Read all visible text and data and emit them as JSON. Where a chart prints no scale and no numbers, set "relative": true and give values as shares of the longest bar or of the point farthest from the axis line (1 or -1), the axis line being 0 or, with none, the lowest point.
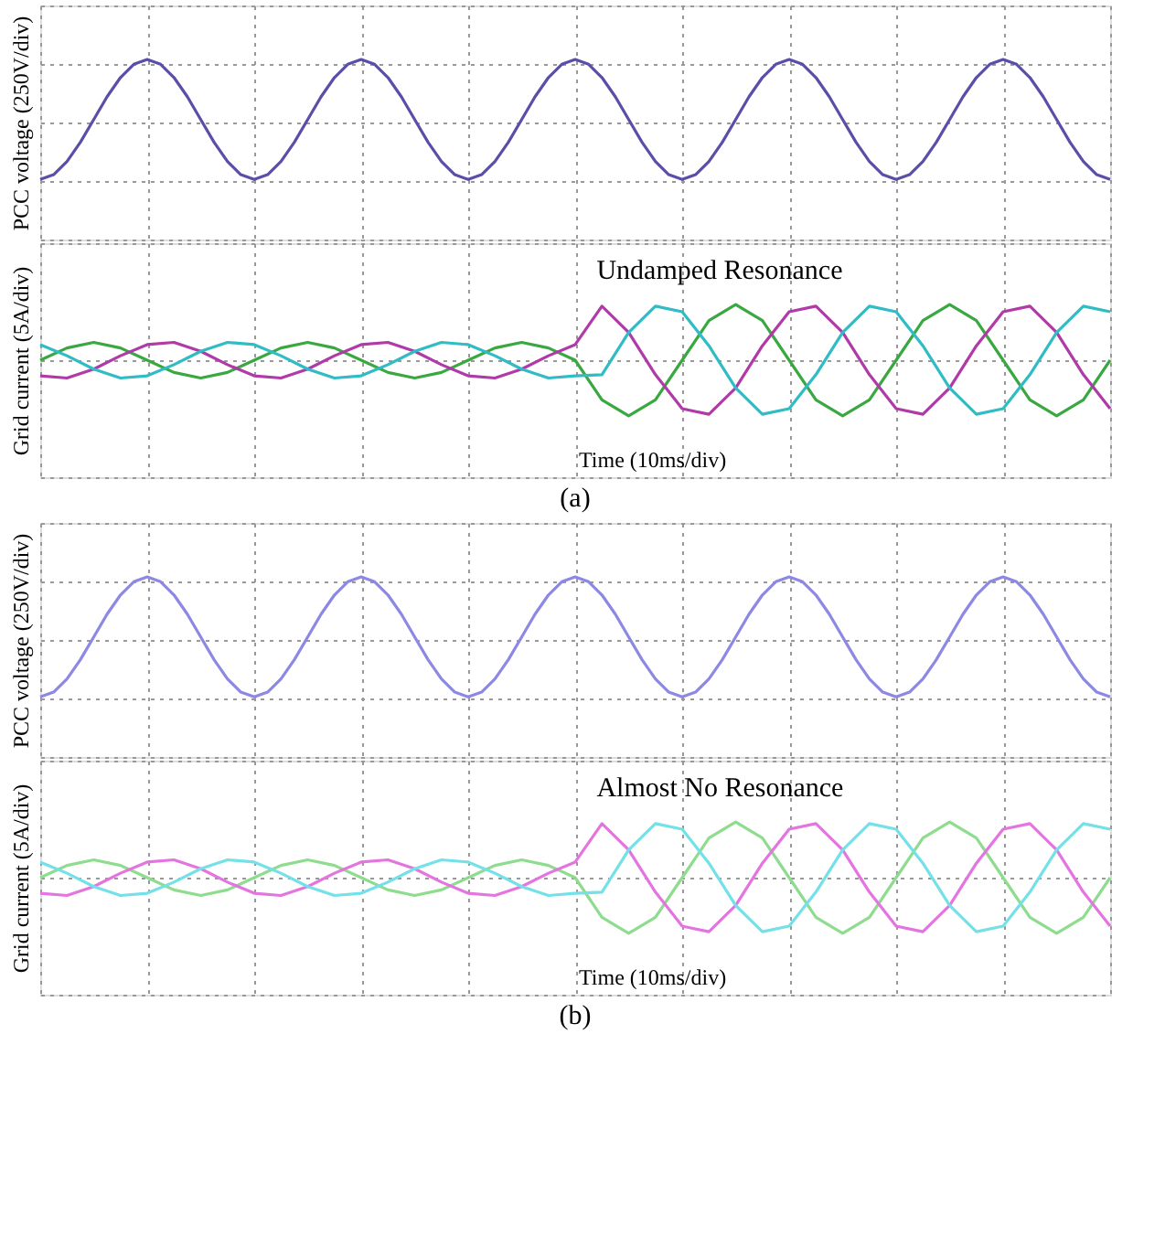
{
  "chart_data": [
    {
      "type": "line",
      "ylabel": "PCC voltage (250V/div)",
      "relative": true,
      "grid": true,
      "tick_labels": false,
      "categories": [
        null,
        null,
        null,
        null,
        null,
        null,
        null,
        null,
        null,
        null,
        null,
        null,
        null,
        null,
        null,
        null,
        null,
        null,
        null,
        null,
        null,
        null,
        null,
        null,
        null,
        null,
        null,
        null,
        null,
        null,
        null,
        null,
        null,
        null,
        null,
        null,
        null,
        null,
        null,
        null,
        null,
        null,
        null,
        null,
        null,
        null,
        null,
        null,
        null,
        null,
        null,
        null,
        null,
        null,
        null,
        null,
        null,
        null,
        null,
        null,
        null,
        null,
        null,
        null,
        null,
        null,
        null,
        null,
        null,
        null,
        null,
        null,
        null,
        null,
        null,
        null,
        null,
        null,
        null,
        null,
        null
      ],
      "series": [
        {
          "color": "#5a4fa8",
          "values": [
            0,
            0.04,
            0.15,
            0.31,
            0.5,
            0.69,
            0.85,
            0.96,
            1,
            0.96,
            0.85,
            0.69,
            0.5,
            0.31,
            0.15,
            0.04,
            0,
            0.04,
            0.15,
            0.31,
            0.5,
            0.69,
            0.85,
            0.96,
            1,
            0.96,
            0.85,
            0.69,
            0.5,
            0.31,
            0.15,
            0.04,
            0,
            0.04,
            0.15,
            0.31,
            0.5,
            0.69,
            0.85,
            0.96,
            1,
            0.96,
            0.85,
            0.69,
            0.5,
            0.31,
            0.15,
            0.04,
            0,
            0.04,
            0.15,
            0.31,
            0.5,
            0.69,
            0.85,
            0.96,
            1,
            0.96,
            0.85,
            0.69,
            0.5,
            0.31,
            0.15,
            0.04,
            0,
            0.04,
            0.15,
            0.31,
            0.5,
            0.69,
            0.85,
            0.96,
            1,
            0.96,
            0.85,
            0.69,
            0.5,
            0.31,
            0.15,
            0.04,
            0
          ]
        }
      ]
    },
    {
      "type": "line",
      "ylabel": "Grid current (5A/div)",
      "xlabel": "Time (10ms/div)",
      "title": "(a)",
      "annotations": [
        "Undamped Resonance"
      ],
      "relative": true,
      "grid": true,
      "tick_labels": false,
      "categories": [
        null,
        null,
        null,
        null,
        null,
        null,
        null,
        null,
        null,
        null,
        null,
        null,
        null,
        null,
        null,
        null,
        null,
        null,
        null,
        null,
        null,
        null,
        null,
        null,
        null,
        null,
        null,
        null,
        null,
        null,
        null,
        null,
        null,
        null,
        null,
        null,
        null,
        null,
        null,
        null,
        null
      ],
      "series": [
        {
          "color": "#3aa840",
          "values": [
            0,
            0.22,
            0.32,
            0.22,
            0,
            -0.22,
            -0.32,
            -0.22,
            0,
            0.22,
            0.32,
            0.22,
            0,
            -0.22,
            -0.32,
            -0.22,
            0,
            0.22,
            0.32,
            0.22,
            0,
            -0.71,
            -1,
            -0.71,
            0,
            0.71,
            1,
            0.71,
            0,
            -0.71,
            -1,
            -0.71,
            0,
            0.71,
            1,
            0.71,
            0,
            -0.71,
            -1,
            -0.71,
            0
          ]
        },
        {
          "color": "#b03aa8",
          "values": [
            -0.28,
            -0.32,
            -0.16,
            0.08,
            0.28,
            0.32,
            0.16,
            -0.08,
            -0.28,
            -0.32,
            -0.16,
            0.08,
            0.28,
            0.32,
            0.16,
            -0.08,
            -0.28,
            -0.32,
            -0.16,
            0.08,
            0.28,
            0.97,
            0.5,
            -0.26,
            -0.87,
            -0.97,
            -0.5,
            0.26,
            0.87,
            0.97,
            0.5,
            -0.26,
            -0.87,
            -0.97,
            -0.5,
            0.26,
            0.87,
            0.97,
            0.5,
            -0.26,
            -0.87
          ]
        },
        {
          "color": "#2fbcc4",
          "values": [
            0.28,
            0.08,
            -0.16,
            -0.32,
            -0.28,
            -0.08,
            0.16,
            0.32,
            0.28,
            0.08,
            -0.16,
            -0.32,
            -0.28,
            -0.08,
            0.16,
            0.32,
            0.28,
            0.08,
            -0.16,
            -0.32,
            -0.28,
            -0.26,
            0.5,
            0.97,
            0.87,
            0.26,
            -0.5,
            -0.97,
            -0.87,
            -0.26,
            0.5,
            0.97,
            0.87,
            0.26,
            -0.5,
            -0.97,
            -0.87,
            -0.26,
            0.5,
            0.97,
            0.87
          ]
        }
      ]
    },
    {
      "type": "line",
      "ylabel": "PCC voltage (250V/div)",
      "relative": true,
      "grid": true,
      "tick_labels": false,
      "categories": [
        null,
        null,
        null,
        null,
        null,
        null,
        null,
        null,
        null,
        null,
        null,
        null,
        null,
        null,
        null,
        null,
        null,
        null,
        null,
        null,
        null,
        null,
        null,
        null,
        null,
        null,
        null,
        null,
        null,
        null,
        null,
        null,
        null,
        null,
        null,
        null,
        null,
        null,
        null,
        null,
        null,
        null,
        null,
        null,
        null,
        null,
        null,
        null,
        null,
        null,
        null,
        null,
        null,
        null,
        null,
        null,
        null,
        null,
        null,
        null,
        null,
        null,
        null,
        null,
        null,
        null,
        null,
        null,
        null,
        null,
        null,
        null,
        null,
        null,
        null,
        null,
        null,
        null,
        null,
        null,
        null
      ],
      "series": [
        {
          "color": "#8c88e4",
          "values": [
            0,
            0.04,
            0.15,
            0.31,
            0.5,
            0.69,
            0.85,
            0.96,
            1,
            0.96,
            0.85,
            0.69,
            0.5,
            0.31,
            0.15,
            0.04,
            0,
            0.04,
            0.15,
            0.31,
            0.5,
            0.69,
            0.85,
            0.96,
            1,
            0.96,
            0.85,
            0.69,
            0.5,
            0.31,
            0.15,
            0.04,
            0,
            0.04,
            0.15,
            0.31,
            0.5,
            0.69,
            0.85,
            0.96,
            1,
            0.96,
            0.85,
            0.69,
            0.5,
            0.31,
            0.15,
            0.04,
            0,
            0.04,
            0.15,
            0.31,
            0.5,
            0.69,
            0.85,
            0.96,
            1,
            0.96,
            0.85,
            0.69,
            0.5,
            0.31,
            0.15,
            0.04,
            0,
            0.04,
            0.15,
            0.31,
            0.5,
            0.69,
            0.85,
            0.96,
            1,
            0.96,
            0.85,
            0.69,
            0.5,
            0.31,
            0.15,
            0.04,
            0
          ]
        }
      ]
    },
    {
      "type": "line",
      "ylabel": "Grid current (5A/div)",
      "xlabel": "Time (10ms/div)",
      "title": "(b)",
      "annotations": [
        "Almost No Resonance"
      ],
      "relative": true,
      "grid": true,
      "tick_labels": false,
      "categories": [
        null,
        null,
        null,
        null,
        null,
        null,
        null,
        null,
        null,
        null,
        null,
        null,
        null,
        null,
        null,
        null,
        null,
        null,
        null,
        null,
        null,
        null,
        null,
        null,
        null,
        null,
        null,
        null,
        null,
        null,
        null,
        null,
        null,
        null,
        null,
        null,
        null,
        null,
        null,
        null,
        null
      ],
      "series": [
        {
          "color": "#8edc8e",
          "values": [
            0,
            0.22,
            0.32,
            0.22,
            0,
            -0.22,
            -0.32,
            -0.22,
            0,
            0.22,
            0.32,
            0.22,
            0,
            -0.22,
            -0.32,
            -0.22,
            0,
            0.22,
            0.32,
            0.22,
            0,
            -0.71,
            -1,
            -0.71,
            0,
            0.71,
            1,
            0.71,
            0,
            -0.71,
            -1,
            -0.71,
            0,
            0.71,
            1,
            0.71,
            0,
            -0.71,
            -1,
            -0.71,
            0
          ]
        },
        {
          "color": "#e474e0",
          "values": [
            -0.28,
            -0.32,
            -0.16,
            0.08,
            0.28,
            0.32,
            0.16,
            -0.08,
            -0.28,
            -0.32,
            -0.16,
            0.08,
            0.28,
            0.32,
            0.16,
            -0.08,
            -0.28,
            -0.32,
            -0.16,
            0.08,
            0.28,
            0.97,
            0.5,
            -0.26,
            -0.87,
            -0.97,
            -0.5,
            0.26,
            0.87,
            0.97,
            0.5,
            -0.26,
            -0.87,
            -0.97,
            -0.5,
            0.26,
            0.87,
            0.97,
            0.5,
            -0.26,
            -0.87
          ]
        },
        {
          "color": "#74e0e8",
          "values": [
            0.28,
            0.08,
            -0.16,
            -0.32,
            -0.28,
            -0.08,
            0.16,
            0.32,
            0.28,
            0.08,
            -0.16,
            -0.32,
            -0.28,
            -0.08,
            0.16,
            0.32,
            0.28,
            0.08,
            -0.16,
            -0.32,
            -0.28,
            -0.26,
            0.5,
            0.97,
            0.87,
            0.26,
            -0.5,
            -0.97,
            -0.87,
            -0.26,
            0.5,
            0.97,
            0.87,
            0.26,
            -0.5,
            -0.97,
            -0.87,
            -0.26,
            0.5,
            0.97,
            0.87
          ]
        }
      ]
    }
  ]
}
